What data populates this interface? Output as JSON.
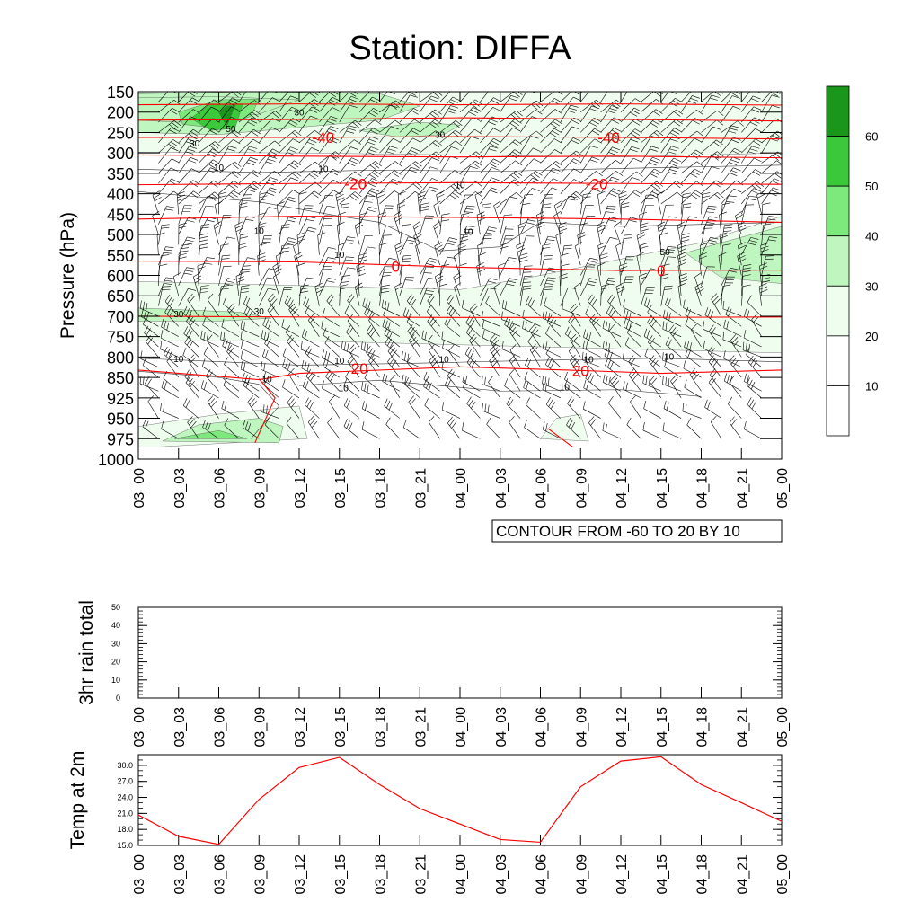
{
  "title": "Station: DIFFA",
  "contour_label": "CONTOUR FROM -60 TO 20 BY 10",
  "colors": {
    "temp_line": "#ff0000",
    "fill_levels": [
      "#ffffff",
      "#ffffff",
      "#eefdee",
      "#bff5bf",
      "#7de97d",
      "#3bc93b",
      "#1a961a"
    ]
  },
  "chart_data": [
    {
      "id": "main",
      "type": "heatmap",
      "title": "Station: DIFFA",
      "ylabel": "Pressure (hPa)",
      "y_ticks": [
        "150",
        "200",
        "250",
        "300",
        "350",
        "400",
        "450",
        "500",
        "550",
        "600",
        "650",
        "700",
        "750",
        "800",
        "850",
        "925",
        "950",
        "975",
        "1000"
      ],
      "x_ticks": [
        "03_00",
        "03_03",
        "03_06",
        "03_09",
        "03_12",
        "03_15",
        "03_18",
        "03_21",
        "04_00",
        "04_03",
        "04_06",
        "04_09",
        "04_12",
        "04_15",
        "04_18",
        "04_21",
        "05_00"
      ],
      "colorbar": {
        "levels": [
          10,
          20,
          30,
          40,
          50,
          60
        ],
        "labels": [
          "10",
          "20",
          "30",
          "40",
          "50",
          "60"
        ]
      },
      "wind_speed_contour_labels": [
        "30",
        "50",
        "30",
        "30",
        "10",
        "10",
        "10",
        "10",
        "10",
        "10",
        "50",
        "30",
        "30",
        "10",
        "10",
        "10",
        "10",
        "10",
        "10",
        "10",
        "10"
      ],
      "temperature_contours": [
        {
          "label": "-40",
          "level_hPa": 262
        },
        {
          "label": "-20",
          "level_hPa": 375
        },
        {
          "label": "0",
          "level_hPa": 578
        },
        {
          "label": "20",
          "level_hPa": 838
        }
      ],
      "temperature_label_positions": [
        {
          "label": "-40",
          "x": 4.6,
          "p": 262
        },
        {
          "label": "-40",
          "x": 11.7,
          "p": 262
        },
        {
          "label": "-20",
          "x": 5.4,
          "p": 375
        },
        {
          "label": "-20",
          "x": 11.4,
          "p": 375
        },
        {
          "label": "0",
          "x": 6.4,
          "p": 578
        },
        {
          "label": "0",
          "x": 13.0,
          "p": 588
        },
        {
          "label": "20",
          "x": 5.5,
          "p": 828
        },
        {
          "label": "20",
          "x": 11.0,
          "p": 833
        }
      ]
    },
    {
      "id": "rain",
      "type": "line",
      "ylabel": "3hr rain total",
      "ylim": [
        0,
        50
      ],
      "y_ticks": [
        "0",
        "10",
        "20",
        "30",
        "40",
        "50"
      ],
      "x": [
        "03_00",
        "03_03",
        "03_06",
        "03_09",
        "03_12",
        "03_15",
        "03_18",
        "03_21",
        "04_00",
        "04_03",
        "04_06",
        "04_09",
        "04_12",
        "04_15",
        "04_18",
        "04_21",
        "05_00"
      ],
      "values": [
        0,
        0,
        0,
        0,
        0,
        0,
        0,
        0,
        0,
        0,
        0,
        0,
        0,
        0,
        0,
        0,
        0
      ]
    },
    {
      "id": "temp2m",
      "type": "line",
      "ylabel": "Temp at 2m",
      "ylim": [
        15.0,
        32.0
      ],
      "y_ticks": [
        "15.0",
        "18.0",
        "21.0",
        "24.0",
        "27.0",
        "30.0"
      ],
      "x": [
        "03_00",
        "03_03",
        "03_06",
        "03_09",
        "03_12",
        "03_15",
        "03_18",
        "03_21",
        "04_00",
        "04_03",
        "04_06",
        "04_09",
        "04_12",
        "04_15",
        "04_18",
        "04_21",
        "05_00"
      ],
      "values": [
        20.7,
        16.7,
        15.2,
        23.6,
        29.6,
        31.5,
        26.4,
        21.9,
        19.0,
        16.1,
        15.6,
        26.0,
        30.8,
        31.6,
        26.4,
        23.0,
        19.5
      ]
    }
  ]
}
